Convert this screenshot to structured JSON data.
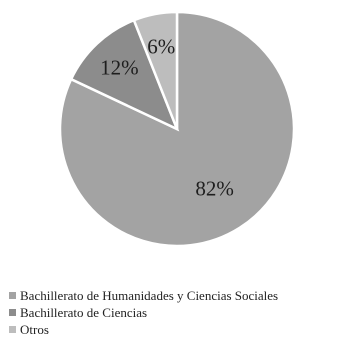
{
  "chart_data": {
    "type": "pie",
    "categories": [
      "Bachillerato de Humanidades y Ciencias Sociales",
      "Bachillerato de Ciencias",
      "Otros"
    ],
    "values": [
      82,
      12,
      6
    ],
    "labels": [
      "82%",
      "12%",
      "6%"
    ],
    "colors": [
      "#a3a3a3",
      "#8c8c8c",
      "#bdbdbd"
    ],
    "legend_position": "bottom"
  }
}
